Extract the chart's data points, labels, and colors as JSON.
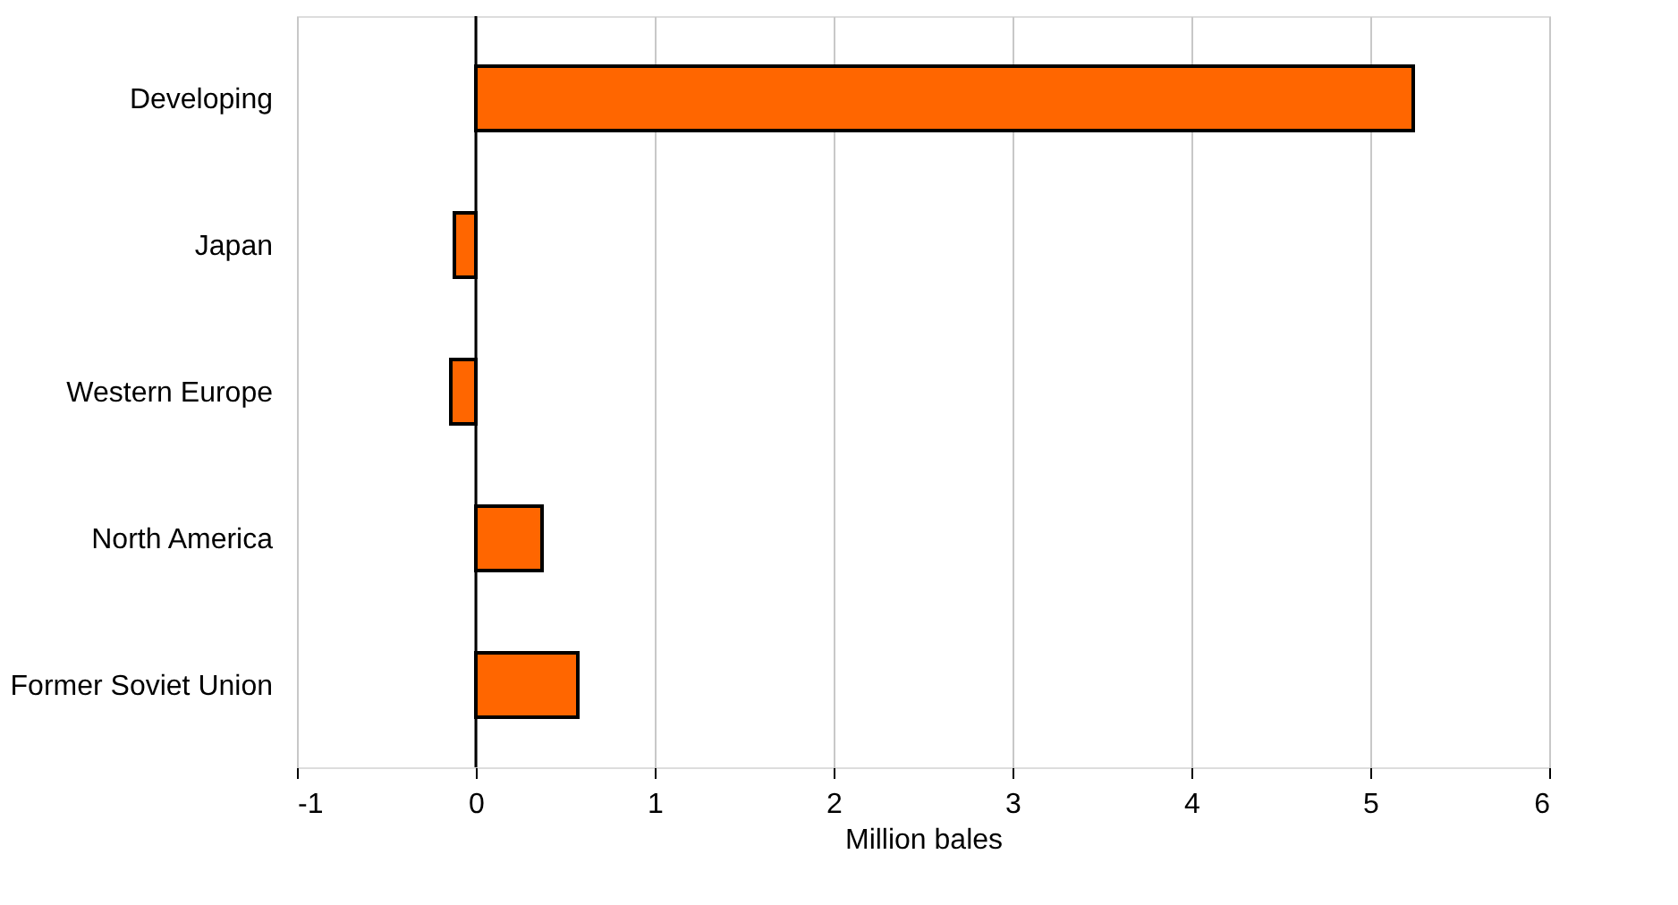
{
  "chart_data": {
    "type": "bar",
    "orientation": "horizontal",
    "xlabel": "Million bales",
    "categories": [
      "Developing",
      "Japan",
      "Western Europe",
      "North America",
      "Former Soviet Union"
    ],
    "values": [
      5.24,
      -0.12,
      -0.14,
      0.37,
      0.57
    ],
    "color": "#ff6600",
    "xlim": [
      -1,
      6
    ],
    "xticks": [
      -1,
      0,
      1,
      2,
      3,
      4,
      5,
      6
    ],
    "grid": "x",
    "ref_lines": [
      {
        "axis": "x",
        "value": 0,
        "color": "#000000"
      }
    ]
  }
}
